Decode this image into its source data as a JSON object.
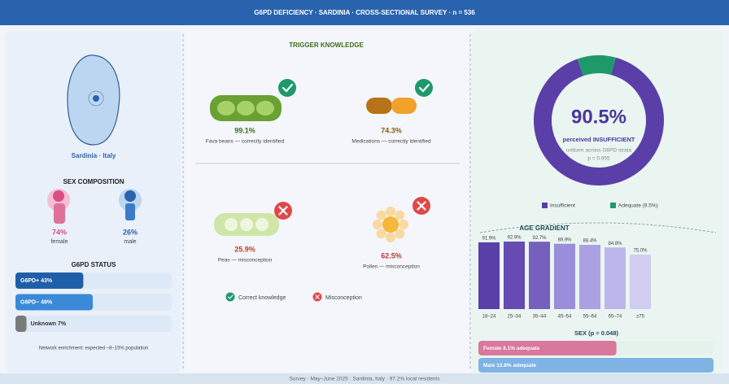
{
  "header": {
    "title": "G6PD DEFICIENCY · SARDINIA · CROSS-SECTIONAL SURVEY · n = 536"
  },
  "location": {
    "label": "Sardinia · Italy"
  },
  "sex_composition": {
    "title": "SEX COMPOSITION",
    "female": {
      "value": "74%",
      "label": "female"
    },
    "male": {
      "value": "26%",
      "label": "male"
    }
  },
  "trigger_knowledge": {
    "title": "TRIGGER KNOWLEDGE",
    "items": [
      {
        "value": "99.1%",
        "label": "Fava beans — correctly identified"
      },
      {
        "value": "74.3%",
        "label": "Medications — correctly identified"
      },
      {
        "value": "25.9%",
        "label": "Peas — misconception"
      },
      {
        "value": "62.5%",
        "label": "Pollen — misconception"
      }
    ],
    "legend": [
      "Correct knowledge",
      "Misconception"
    ]
  },
  "footer": "Survey · May–June 2025 · Sardinia, Italy · 97.2% local residents",
  "chart_data": [
    {
      "type": "hbar",
      "title": "G6PD STATUS",
      "categories": [
        "G6PD+",
        "G6PD−",
        "Unknown"
      ],
      "values": [
        43,
        49,
        7
      ],
      "value_labels": [
        "43%",
        "49%",
        "7%"
      ],
      "colors": [
        "#1f5fa8",
        "#3a8ad8",
        "#7a7a7a"
      ],
      "note": "Network enrichment: expected ~8–15% population"
    },
    {
      "type": "donut",
      "categories": [
        "Insufficient",
        "Adequate (9.5%)"
      ],
      "values": [
        90.5,
        9.5
      ],
      "colors": [
        "#5a3fa8",
        "#1e9a6a"
      ],
      "headline": "90.5%",
      "headline_caption": "perceived INSUFFICIENT",
      "notes": [
        "uniform across G6PD strata",
        "p = 0.955"
      ]
    },
    {
      "type": "column",
      "title": "AGE GRADIENT",
      "categories": [
        "18–24",
        "25–34",
        "35–44",
        "45–54",
        "55–64",
        "65–74",
        "≥75"
      ],
      "values": [
        91.9,
        92.9,
        92.7,
        89.9,
        88.4,
        84.8,
        75.0
      ],
      "value_labels": [
        "91.9%",
        "92.9%",
        "92.7%",
        "89.9%",
        "88.4%",
        "84.8%",
        "75.0%"
      ],
      "colors": [
        "#5a3fa8",
        "#654bb2",
        "#7560bd",
        "#9a8ddc",
        "#aba1e2",
        "#bdb6ea",
        "#d0cdf0"
      ]
    },
    {
      "type": "hbar",
      "title": "SEX (p = 0.048)",
      "categories": [
        "Female 8.1% adequate",
        "Male 13.8% adequate"
      ],
      "values": [
        8.1,
        13.8
      ],
      "colors": [
        "#d9789a",
        "#7fb3e3"
      ]
    }
  ]
}
